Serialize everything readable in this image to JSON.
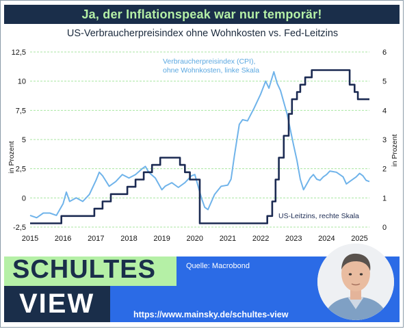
{
  "header": {
    "banner": "Ja, der Inflationspeak war nur temporär!",
    "subtitle": "US-Verbraucherpreisindex ohne Wohnkosten vs. Fed-Leitzins"
  },
  "colors": {
    "banner_bg": "#1a2e4a",
    "banner_text": "#b5f0a6",
    "cpi_line": "#6fb3ea",
    "rate_line": "#1b2a52",
    "grid": "#a8e6a0",
    "footer_blue": "#2b6be6"
  },
  "chart_data": {
    "type": "line",
    "title": "US-Verbraucherpreisindex ohne Wohnkosten vs. Fed-Leitzins",
    "xlabel": "",
    "ylabel_left": "in Prozent",
    "ylabel_right": "in Prozent",
    "xlim": [
      2015.0,
      2025.3
    ],
    "ylim_left": [
      -2.5,
      12.5
    ],
    "ylim_right": [
      0,
      6
    ],
    "x_ticks": [
      "2015",
      "2016",
      "2017",
      "2018",
      "2019",
      "2020",
      "2021",
      "2022",
      "2023",
      "2024",
      "2025"
    ],
    "y_ticks_left": [
      "12,5",
      "10",
      "7,5",
      "5",
      "2,5",
      "0",
      "-2,5"
    ],
    "y_ticks_right": [
      "6",
      "5",
      "4",
      "3",
      "2",
      "1",
      "0"
    ],
    "grid": true,
    "series": [
      {
        "name": "Verbraucherpreisindex (CPI), ohne Wohnkosten, linke Skala",
        "axis": "left",
        "annotation": [
          "Verbraucherpreisindex (CPI),",
          "ohne Wohnkosten, linke Skala"
        ],
        "points": [
          [
            2015.0,
            -1.5
          ],
          [
            2015.2,
            -1.7
          ],
          [
            2015.4,
            -1.3
          ],
          [
            2015.6,
            -1.3
          ],
          [
            2015.8,
            -1.5
          ],
          [
            2016.0,
            -0.5
          ],
          [
            2016.1,
            0.5
          ],
          [
            2016.2,
            -0.3
          ],
          [
            2016.4,
            0.0
          ],
          [
            2016.6,
            -0.3
          ],
          [
            2016.8,
            0.3
          ],
          [
            2017.0,
            1.5
          ],
          [
            2017.1,
            2.2
          ],
          [
            2017.2,
            1.9
          ],
          [
            2017.4,
            1.0
          ],
          [
            2017.6,
            1.4
          ],
          [
            2017.8,
            2.0
          ],
          [
            2018.0,
            1.7
          ],
          [
            2018.2,
            2.0
          ],
          [
            2018.4,
            2.5
          ],
          [
            2018.5,
            2.7
          ],
          [
            2018.6,
            2.2
          ],
          [
            2018.8,
            1.7
          ],
          [
            2019.0,
            0.7
          ],
          [
            2019.1,
            1.0
          ],
          [
            2019.3,
            1.3
          ],
          [
            2019.5,
            0.9
          ],
          [
            2019.7,
            1.3
          ],
          [
            2019.9,
            1.9
          ],
          [
            2020.0,
            2.0
          ],
          [
            2020.2,
            0.0
          ],
          [
            2020.3,
            -0.8
          ],
          [
            2020.4,
            -1.0
          ],
          [
            2020.6,
            0.3
          ],
          [
            2020.8,
            1.0
          ],
          [
            2021.0,
            1.1
          ],
          [
            2021.1,
            1.6
          ],
          [
            2021.2,
            3.6
          ],
          [
            2021.35,
            6.3
          ],
          [
            2021.45,
            6.7
          ],
          [
            2021.6,
            6.6
          ],
          [
            2021.8,
            7.7
          ],
          [
            2022.0,
            8.9
          ],
          [
            2022.15,
            10.0
          ],
          [
            2022.25,
            9.4
          ],
          [
            2022.4,
            10.8
          ],
          [
            2022.5,
            9.8
          ],
          [
            2022.6,
            9.2
          ],
          [
            2022.8,
            7.2
          ],
          [
            2023.0,
            4.5
          ],
          [
            2023.1,
            3.2
          ],
          [
            2023.2,
            1.6
          ],
          [
            2023.3,
            0.7
          ],
          [
            2023.4,
            1.2
          ],
          [
            2023.5,
            1.7
          ],
          [
            2023.6,
            2.0
          ],
          [
            2023.7,
            1.6
          ],
          [
            2023.8,
            1.5
          ],
          [
            2023.9,
            1.8
          ],
          [
            2024.0,
            2.0
          ],
          [
            2024.1,
            2.3
          ],
          [
            2024.3,
            2.2
          ],
          [
            2024.5,
            1.8
          ],
          [
            2024.6,
            1.2
          ],
          [
            2024.7,
            1.4
          ],
          [
            2024.9,
            1.8
          ],
          [
            2025.0,
            2.1
          ],
          [
            2025.1,
            1.9
          ],
          [
            2025.2,
            1.5
          ],
          [
            2025.3,
            1.4
          ]
        ]
      },
      {
        "name": "US-Leitzins, rechte Skala",
        "axis": "right",
        "annotation": [
          "US-Leitzins, rechte Skala"
        ],
        "points": [
          [
            2015.0,
            0.13
          ],
          [
            2015.95,
            0.13
          ],
          [
            2015.95,
            0.38
          ],
          [
            2016.95,
            0.38
          ],
          [
            2016.95,
            0.63
          ],
          [
            2017.2,
            0.63
          ],
          [
            2017.2,
            0.88
          ],
          [
            2017.45,
            0.88
          ],
          [
            2017.45,
            1.13
          ],
          [
            2017.95,
            1.13
          ],
          [
            2017.95,
            1.38
          ],
          [
            2018.2,
            1.38
          ],
          [
            2018.2,
            1.63
          ],
          [
            2018.45,
            1.63
          ],
          [
            2018.45,
            1.88
          ],
          [
            2018.7,
            1.88
          ],
          [
            2018.7,
            2.13
          ],
          [
            2018.95,
            2.13
          ],
          [
            2018.95,
            2.38
          ],
          [
            2019.55,
            2.38
          ],
          [
            2019.55,
            2.13
          ],
          [
            2019.7,
            2.13
          ],
          [
            2019.7,
            1.88
          ],
          [
            2019.85,
            1.88
          ],
          [
            2019.85,
            1.63
          ],
          [
            2020.15,
            1.63
          ],
          [
            2020.15,
            0.13
          ],
          [
            2022.2,
            0.13
          ],
          [
            2022.2,
            0.38
          ],
          [
            2022.35,
            0.38
          ],
          [
            2022.35,
            0.88
          ],
          [
            2022.45,
            0.88
          ],
          [
            2022.45,
            1.63
          ],
          [
            2022.55,
            1.63
          ],
          [
            2022.55,
            2.38
          ],
          [
            2022.7,
            2.38
          ],
          [
            2022.7,
            3.13
          ],
          [
            2022.85,
            3.13
          ],
          [
            2022.85,
            3.88
          ],
          [
            2022.95,
            3.88
          ],
          [
            2022.95,
            4.38
          ],
          [
            2023.1,
            4.38
          ],
          [
            2023.1,
            4.63
          ],
          [
            2023.2,
            4.63
          ],
          [
            2023.2,
            4.88
          ],
          [
            2023.35,
            4.88
          ],
          [
            2023.35,
            5.13
          ],
          [
            2023.55,
            5.13
          ],
          [
            2023.55,
            5.38
          ],
          [
            2024.7,
            5.38
          ],
          [
            2024.7,
            4.88
          ],
          [
            2024.85,
            4.88
          ],
          [
            2024.85,
            4.63
          ],
          [
            2024.95,
            4.63
          ],
          [
            2024.95,
            4.38
          ],
          [
            2025.3,
            4.38
          ]
        ]
      }
    ]
  },
  "footer": {
    "brand_top": "SCHULTES",
    "brand_bottom": "VIEW",
    "source": "Quelle: Macrobond",
    "url": "https://www.mainsky.de/schultes-view"
  }
}
